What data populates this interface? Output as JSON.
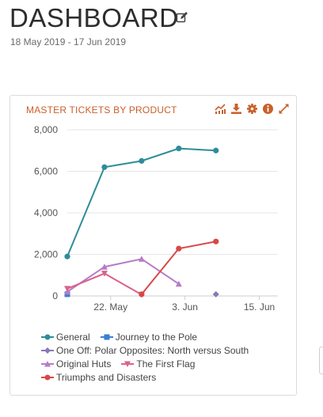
{
  "page": {
    "title": "DASHBOARD",
    "date_range": "18 May 2019 - 17 Jun 2019"
  },
  "widget": {
    "title": "MASTER TICKETS BY PRODUCT",
    "tools": [
      "trend-chart-icon",
      "download-icon",
      "gear-icon",
      "info-icon",
      "expand-icon"
    ],
    "accent_color": "#c8602a",
    "tool_color": "#c8602a"
  },
  "chart_data": {
    "type": "line",
    "x_ticks": [
      "22. May",
      "3. Jun",
      "15. Jun"
    ],
    "y_ticks": [
      "0",
      "2,000",
      "4,000",
      "6,000",
      "8,000"
    ],
    "ylim": [
      0,
      8000
    ],
    "xlim": [
      "2019-05-15",
      "2019-06-18"
    ],
    "grid": true,
    "legend_position": "bottom-left",
    "series": [
      {
        "name": "General",
        "color": "#2f8c9a",
        "marker": "circle",
        "points": [
          [
            "2019-05-15",
            1900
          ],
          [
            "2019-05-21",
            6200
          ],
          [
            "2019-05-27",
            6500
          ],
          [
            "2019-06-02",
            7100
          ],
          [
            "2019-06-08",
            7000
          ]
        ]
      },
      {
        "name": "Journey to the Pole",
        "color": "#3a7fd0",
        "marker": "square",
        "points": [
          [
            "2019-05-15",
            80
          ]
        ]
      },
      {
        "name": "One Off: Polar Opposites: North versus South",
        "color": "#8a78b6",
        "marker": "diamond",
        "points": [
          [
            "2019-06-08",
            80
          ]
        ]
      },
      {
        "name": "Original Huts",
        "color": "#b57cc6",
        "marker": "triangle",
        "points": [
          [
            "2019-05-15",
            200
          ],
          [
            "2019-05-21",
            1400
          ],
          [
            "2019-05-27",
            1780
          ],
          [
            "2019-06-02",
            580
          ]
        ]
      },
      {
        "name": "The First Flag",
        "color": "#d9638a",
        "marker": "triangle-down",
        "points": [
          [
            "2019-05-15",
            350
          ],
          [
            "2019-05-21",
            1080
          ],
          [
            "2019-05-27",
            60
          ]
        ]
      },
      {
        "name": "Triumphs and Disasters",
        "color": "#d94848",
        "marker": "circle",
        "points": [
          [
            "2019-05-27",
            80
          ],
          [
            "2019-06-02",
            2280
          ],
          [
            "2019-06-08",
            2620
          ]
        ]
      }
    ]
  }
}
